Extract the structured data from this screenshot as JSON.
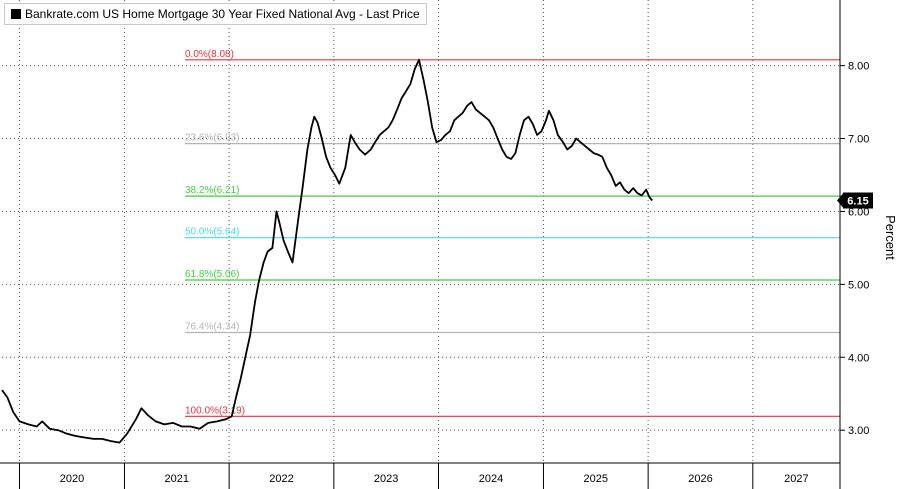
{
  "chart_data": {
    "type": "line",
    "legend": "Bankrate.com US Home Mortgage 30 Year Fixed National Avg - Last Price",
    "ylabel": "Percent",
    "ylim": [
      2.55,
      8.9
    ],
    "x_range": [
      "2019-11-01",
      "2027-11-01"
    ],
    "x_tick_labels": [
      "2020",
      "2021",
      "2022",
      "2023",
      "2024",
      "2025",
      "2026",
      "2027"
    ],
    "y_ticks": [
      3.0,
      4.0,
      5.0,
      6.0,
      7.0,
      8.0
    ],
    "y_tick_labels": [
      "3.00",
      "4.00",
      "5.00",
      "6.00",
      "7.00",
      "8.00"
    ],
    "last_value_label": "6.15",
    "grid": true,
    "fib_levels": [
      {
        "label": "0.0%(8.08)",
        "value": 8.08,
        "color": "#e8323c"
      },
      {
        "label": "23.6%(6.93)",
        "value": 6.93,
        "color": "#b4b4b4"
      },
      {
        "label": "38.2%(6.21)",
        "value": 6.21,
        "color": "#3cd23c"
      },
      {
        "label": "50.0%(5.64)",
        "value": 5.64,
        "color": "#46dcf0"
      },
      {
        "label": "61.8%(5.06)",
        "value": 5.06,
        "color": "#3cd23c"
      },
      {
        "label": "76.4%(4.34)",
        "value": 4.34,
        "color": "#b4b4b4"
      },
      {
        "label": "100.0%(3.19)",
        "value": 3.19,
        "color": "#e8323c"
      }
    ],
    "series": [
      {
        "color": "#000000",
        "points": [
          [
            "2019-11-01",
            3.55
          ],
          [
            "2019-11-20",
            3.45
          ],
          [
            "2019-12-10",
            3.25
          ],
          [
            "2020-01-01",
            3.12
          ],
          [
            "2020-02-01",
            3.08
          ],
          [
            "2020-03-01",
            3.05
          ],
          [
            "2020-03-20",
            3.12
          ],
          [
            "2020-04-15",
            3.02
          ],
          [
            "2020-05-15",
            3.0
          ],
          [
            "2020-06-15",
            2.95
          ],
          [
            "2020-07-15",
            2.92
          ],
          [
            "2020-08-15",
            2.9
          ],
          [
            "2020-09-15",
            2.88
          ],
          [
            "2020-10-15",
            2.88
          ],
          [
            "2020-11-15",
            2.85
          ],
          [
            "2020-12-15",
            2.83
          ],
          [
            "2021-01-10",
            2.95
          ],
          [
            "2021-02-10",
            3.15
          ],
          [
            "2021-03-01",
            3.3
          ],
          [
            "2021-03-25",
            3.2
          ],
          [
            "2021-04-20",
            3.12
          ],
          [
            "2021-05-20",
            3.08
          ],
          [
            "2021-06-20",
            3.1
          ],
          [
            "2021-07-20",
            3.05
          ],
          [
            "2021-08-20",
            3.05
          ],
          [
            "2021-09-20",
            3.02
          ],
          [
            "2021-10-20",
            3.1
          ],
          [
            "2021-11-20",
            3.12
          ],
          [
            "2021-12-20",
            3.15
          ],
          [
            "2022-01-10",
            3.19
          ],
          [
            "2022-01-25",
            3.45
          ],
          [
            "2022-02-10",
            3.7
          ],
          [
            "2022-03-01",
            4.05
          ],
          [
            "2022-03-15",
            4.3
          ],
          [
            "2022-04-01",
            4.75
          ],
          [
            "2022-04-15",
            5.05
          ],
          [
            "2022-05-01",
            5.3
          ],
          [
            "2022-05-15",
            5.45
          ],
          [
            "2022-06-01",
            5.5
          ],
          [
            "2022-06-15",
            6.0
          ],
          [
            "2022-06-25",
            5.85
          ],
          [
            "2022-07-10",
            5.6
          ],
          [
            "2022-07-25",
            5.45
          ],
          [
            "2022-08-10",
            5.3
          ],
          [
            "2022-08-20",
            5.6
          ],
          [
            "2022-09-01",
            5.95
          ],
          [
            "2022-09-15",
            6.35
          ],
          [
            "2022-10-01",
            6.85
          ],
          [
            "2022-10-15",
            7.15
          ],
          [
            "2022-10-25",
            7.3
          ],
          [
            "2022-11-05",
            7.22
          ],
          [
            "2022-11-20",
            7.0
          ],
          [
            "2022-12-05",
            6.75
          ],
          [
            "2022-12-20",
            6.6
          ],
          [
            "2023-01-05",
            6.5
          ],
          [
            "2023-01-20",
            6.38
          ],
          [
            "2023-02-10",
            6.6
          ],
          [
            "2023-03-01",
            7.05
          ],
          [
            "2023-03-15",
            6.95
          ],
          [
            "2023-04-01",
            6.85
          ],
          [
            "2023-04-20",
            6.78
          ],
          [
            "2023-05-10",
            6.85
          ],
          [
            "2023-05-25",
            6.95
          ],
          [
            "2023-06-10",
            7.05
          ],
          [
            "2023-06-25",
            7.1
          ],
          [
            "2023-07-10",
            7.15
          ],
          [
            "2023-07-25",
            7.25
          ],
          [
            "2023-08-10",
            7.4
          ],
          [
            "2023-08-25",
            7.55
          ],
          [
            "2023-09-10",
            7.65
          ],
          [
            "2023-09-25",
            7.75
          ],
          [
            "2023-10-10",
            7.95
          ],
          [
            "2023-10-25",
            8.08
          ],
          [
            "2023-11-10",
            7.8
          ],
          [
            "2023-11-25",
            7.5
          ],
          [
            "2023-12-10",
            7.15
          ],
          [
            "2023-12-25",
            6.95
          ],
          [
            "2024-01-10",
            6.98
          ],
          [
            "2024-01-25",
            7.05
          ],
          [
            "2024-02-10",
            7.1
          ],
          [
            "2024-02-25",
            7.25
          ],
          [
            "2024-03-10",
            7.3
          ],
          [
            "2024-03-25",
            7.35
          ],
          [
            "2024-04-10",
            7.45
          ],
          [
            "2024-04-25",
            7.5
          ],
          [
            "2024-05-10",
            7.4
          ],
          [
            "2024-05-25",
            7.35
          ],
          [
            "2024-06-10",
            7.3
          ],
          [
            "2024-06-25",
            7.25
          ],
          [
            "2024-07-10",
            7.15
          ],
          [
            "2024-07-25",
            7.0
          ],
          [
            "2024-08-10",
            6.85
          ],
          [
            "2024-08-25",
            6.75
          ],
          [
            "2024-09-10",
            6.72
          ],
          [
            "2024-09-25",
            6.8
          ],
          [
            "2024-10-10",
            7.05
          ],
          [
            "2024-10-25",
            7.25
          ],
          [
            "2024-11-10",
            7.3
          ],
          [
            "2024-11-25",
            7.2
          ],
          [
            "2024-12-10",
            7.05
          ],
          [
            "2024-12-25",
            7.1
          ],
          [
            "2025-01-10",
            7.25
          ],
          [
            "2025-01-20",
            7.38
          ],
          [
            "2025-02-05",
            7.25
          ],
          [
            "2025-02-20",
            7.05
          ],
          [
            "2025-03-10",
            6.95
          ],
          [
            "2025-03-25",
            6.85
          ],
          [
            "2025-04-10",
            6.9
          ],
          [
            "2025-04-25",
            7.0
          ],
          [
            "2025-05-10",
            6.95
          ],
          [
            "2025-05-25",
            6.9
          ],
          [
            "2025-06-10",
            6.85
          ],
          [
            "2025-06-25",
            6.8
          ],
          [
            "2025-07-10",
            6.78
          ],
          [
            "2025-07-25",
            6.75
          ],
          [
            "2025-08-10",
            6.6
          ],
          [
            "2025-08-25",
            6.5
          ],
          [
            "2025-09-10",
            6.35
          ],
          [
            "2025-09-25",
            6.4
          ],
          [
            "2025-10-10",
            6.3
          ],
          [
            "2025-10-25",
            6.25
          ],
          [
            "2025-11-10",
            6.32
          ],
          [
            "2025-11-25",
            6.25
          ],
          [
            "2025-12-10",
            6.22
          ],
          [
            "2025-12-25",
            6.3
          ],
          [
            "2026-01-05",
            6.2
          ],
          [
            "2026-01-15",
            6.15
          ]
        ]
      }
    ]
  }
}
